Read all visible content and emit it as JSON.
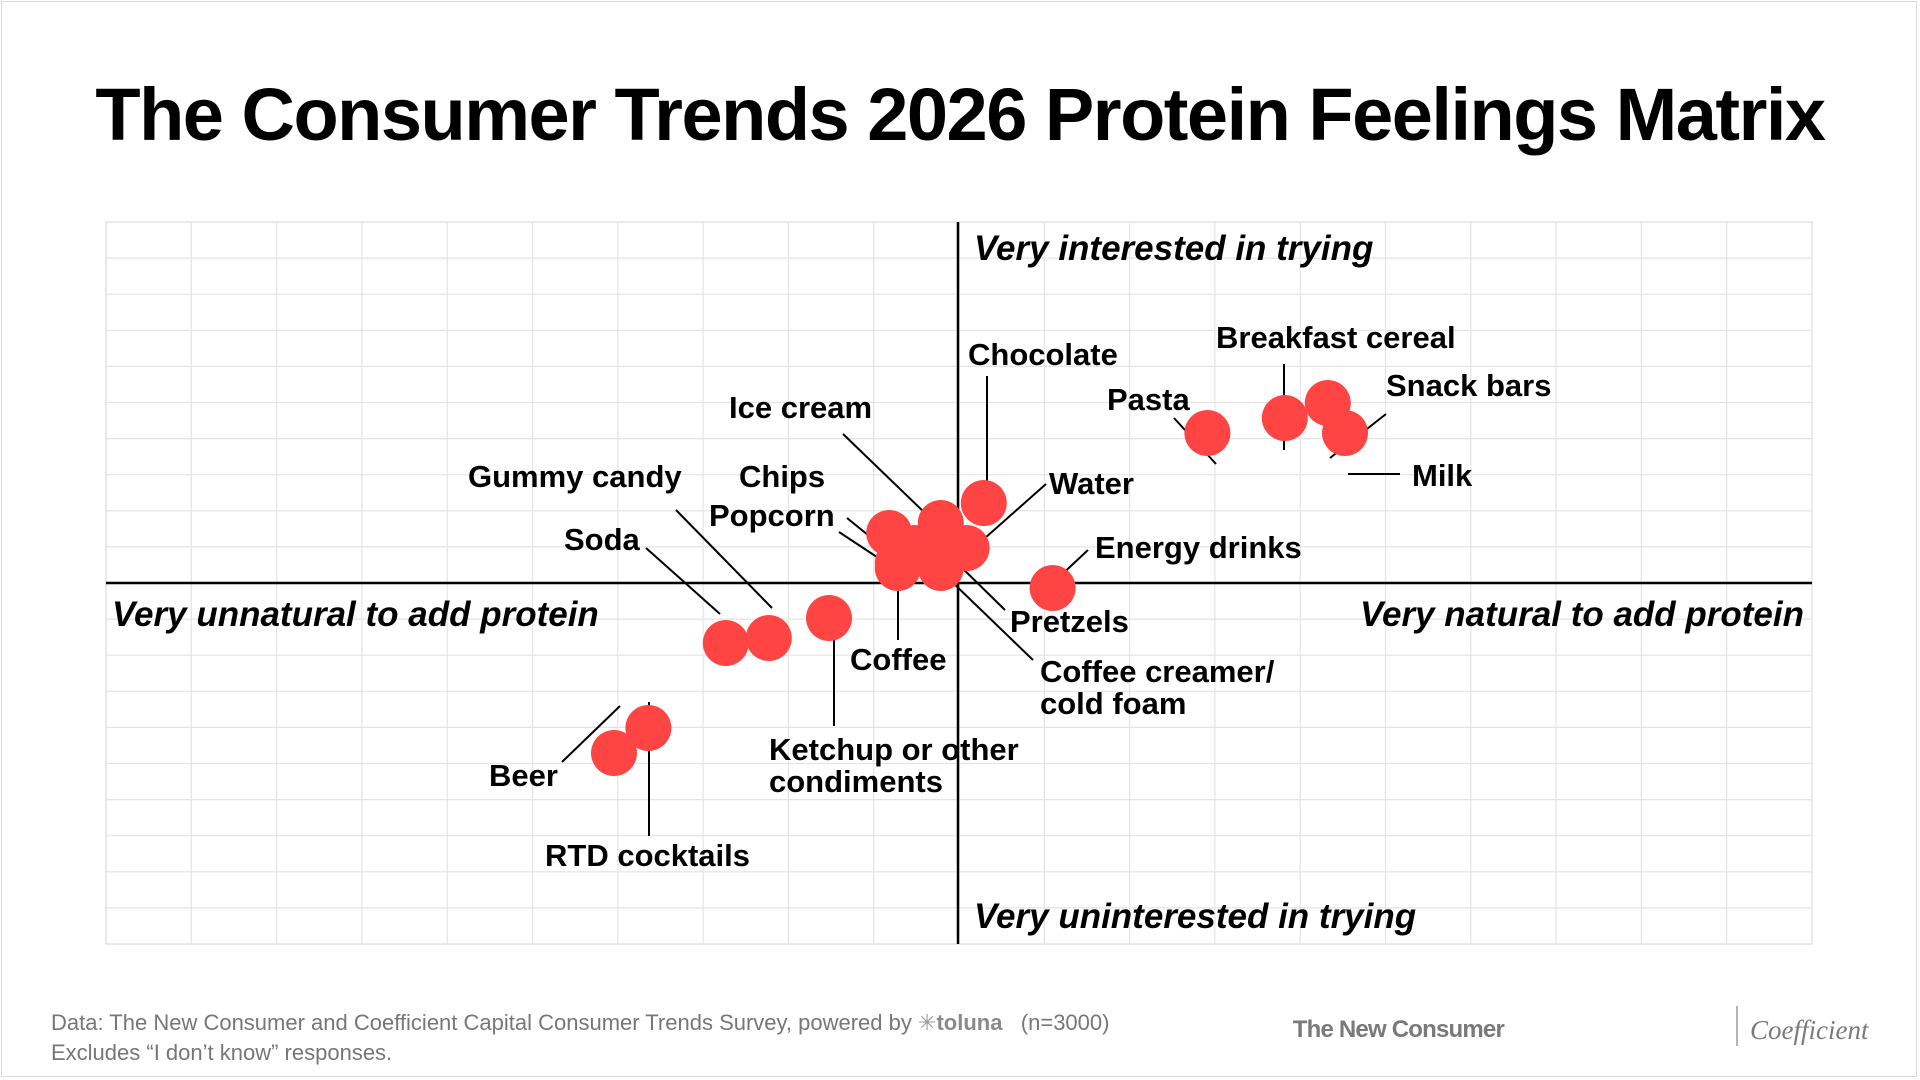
{
  "title": "The Consumer Trends 2026 Protein Feelings Matrix",
  "colors": {
    "point": "#ff4444",
    "grid": "#e4e4e4",
    "axis": "#000000"
  },
  "chart_data": {
    "type": "scatter",
    "grid": true,
    "xlim": [
      -1,
      1
    ],
    "ylim": [
      -1,
      1
    ],
    "axis_labels": {
      "top": "Very interested in trying",
      "bottom": "Very uninterested in trying",
      "left": "Very unnatural to add protein",
      "right": "Very natural to add protein"
    },
    "points": [
      {
        "label": "Breakfast cereal",
        "x": 0.38,
        "y": 0.33
      },
      {
        "label": "Snack bars",
        "x": 0.43,
        "y": 0.36
      },
      {
        "label": "Milk",
        "x": 0.45,
        "y": 0.3
      },
      {
        "label": "Pasta",
        "x": 0.29,
        "y": 0.3
      },
      {
        "label": "Chocolate",
        "x": 0.03,
        "y": 0.16
      },
      {
        "label": "Water",
        "x": 0.01,
        "y": 0.07
      },
      {
        "label": "Energy drinks",
        "x": 0.11,
        "y": -0.01
      },
      {
        "label": "Pretzels",
        "x": -0.02,
        "y": 0.03
      },
      {
        "label": "Coffee creamer/\ncold foam",
        "x": -0.02,
        "y": 0.12
      },
      {
        "label": "Ice cream",
        "x": -0.05,
        "y": 0.07
      },
      {
        "label": "Chips",
        "x": -0.08,
        "y": 0.1
      },
      {
        "label": "Popcorn",
        "x": -0.07,
        "y": 0.04
      },
      {
        "label": "Coffee",
        "x": -0.07,
        "y": 0.03
      },
      {
        "label": "Ketchup or other\ncondiments",
        "x": -0.15,
        "y": -0.07
      },
      {
        "label": "Gummy candy",
        "x": -0.22,
        "y": -0.11
      },
      {
        "label": "Soda",
        "x": -0.27,
        "y": -0.12
      },
      {
        "label": "RTD cocktails",
        "x": -0.36,
        "y": -0.29
      },
      {
        "label": "Beer",
        "x": -0.4,
        "y": -0.34
      }
    ]
  },
  "footer": {
    "source": "Data: The New Consumer and Coefficient Capital Consumer Trends Survey, powered by",
    "powered_by": "toluna",
    "sample": "(n=3000)",
    "note": "Excludes “I don’t know” responses."
  },
  "brands": {
    "left": "The New Consumer",
    "right": "Coefficient"
  }
}
